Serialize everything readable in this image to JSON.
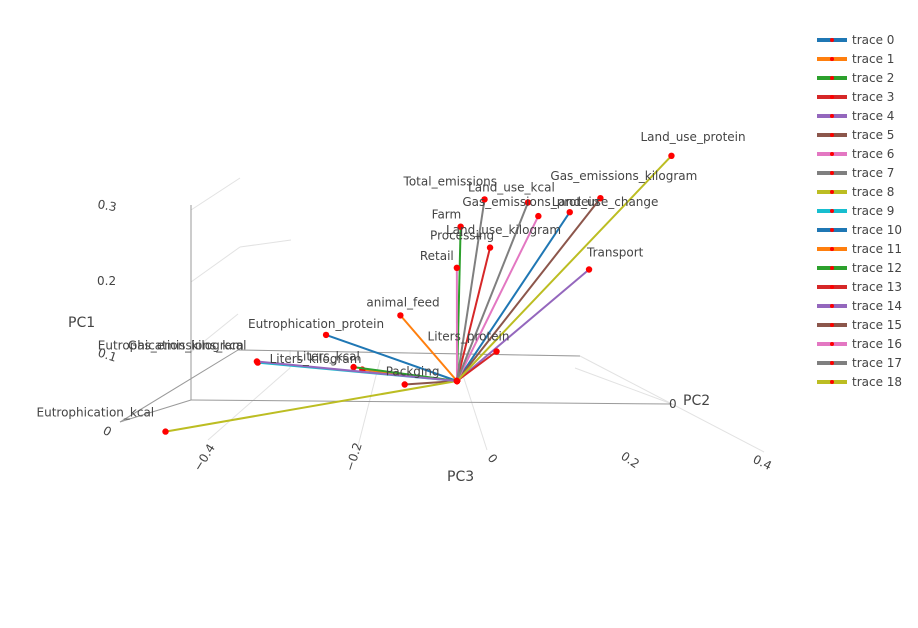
{
  "chart_data": {
    "type": "scatter3d",
    "axes": {
      "x": {
        "title": "PC2",
        "ticks": [
          "0",
          "0.2",
          "0.4"
        ]
      },
      "y": {
        "title": "PC3",
        "ticks": [
          "−0.4",
          "−0.2",
          "0"
        ]
      },
      "z": {
        "title": "PC1",
        "ticks": [
          "0",
          "0.1",
          "0.2",
          "0.3"
        ]
      }
    },
    "legend": {
      "position": "top-right"
    },
    "colors": [
      "#1f77b4",
      "#ff7f0e",
      "#2ca02c",
      "#d62728",
      "#9467bd",
      "#8c564b",
      "#e377c2",
      "#7f7f7f",
      "#bcbd22",
      "#17becf"
    ],
    "marker_color": "#ff0000",
    "series": [
      {
        "name": "trace 0",
        "label": "Land_use_change",
        "PC1": 0.18,
        "PC2": 0.13,
        "PC3": 0.02
      },
      {
        "name": "trace 1",
        "label": "animal_feed",
        "PC1": 0.14,
        "PC2": -0.04,
        "PC3": -0.08
      },
      {
        "name": "trace 2",
        "label": "Farm",
        "PC1": 0.27,
        "PC2": 0.02,
        "PC3": 0.07
      },
      {
        "name": "trace 3",
        "label": "Processing",
        "PC1": 0.19,
        "PC2": 0.05,
        "PC3": 0.0
      },
      {
        "name": "trace 4",
        "label": "Transport",
        "PC1": 0.07,
        "PC2": 0.14,
        "PC3": 0.03
      },
      {
        "name": "trace 5",
        "label": "Packging",
        "PC1": 0.04,
        "PC2": -0.05,
        "PC3": -0.01
      },
      {
        "name": "trace 6",
        "label": "Retail",
        "PC1": 0.13,
        "PC2": 0.03,
        "PC3": -0.22
      },
      {
        "name": "trace 7",
        "label": "Total_emissions",
        "PC1": 0.28,
        "PC2": 0.05,
        "PC3": 0.02
      },
      {
        "name": "trace 8",
        "label": "Eutrophication_kcal",
        "PC1": 0.16,
        "PC2": -0.28,
        "PC3": -0.1
      },
      {
        "name": "trace 9",
        "label": "Eutrophication_kilogram",
        "PC1": 0.22,
        "PC2": -0.19,
        "PC3": 0.02
      },
      {
        "name": "trace 10",
        "label": "Eutrophication_protein",
        "PC1": 0.2,
        "PC2": -0.12,
        "PC3": 0.01
      },
      {
        "name": "trace 11",
        "label": "Liters_kcal",
        "PC1": 0.07,
        "PC2": -0.08,
        "PC3": -0.14
      },
      {
        "name": "trace 12",
        "label": "Liters_kilogram",
        "PC1": 0.09,
        "PC2": -0.09,
        "PC3": -0.11
      },
      {
        "name": "trace 13",
        "label": "Liters_protein",
        "PC1": 0.02,
        "PC2": 0.04,
        "PC3": 0.03
      },
      {
        "name": "trace 14",
        "label": "Gas_emissions_kcal",
        "PC1": 0.22,
        "PC2": -0.19,
        "PC3": 0.01
      },
      {
        "name": "trace 15",
        "label": "Gas_emissions_kilogram",
        "PC1": 0.18,
        "PC2": 0.16,
        "PC3": 0.04
      },
      {
        "name": "trace 16",
        "label": "Gas_emissions_protein",
        "PC1": 0.2,
        "PC2": 0.1,
        "PC3": 0.01
      },
      {
        "name": "trace 17",
        "label": "Land_use_kcal",
        "PC1": 0.24,
        "PC2": 0.09,
        "PC3": 0.04
      },
      {
        "name": "trace 18",
        "label": "Land_use_protein",
        "PC1": 0.2,
        "PC2": 0.23,
        "PC3": 0.1
      }
    ],
    "extra_labels": [
      "Land_use_kilogram"
    ]
  }
}
